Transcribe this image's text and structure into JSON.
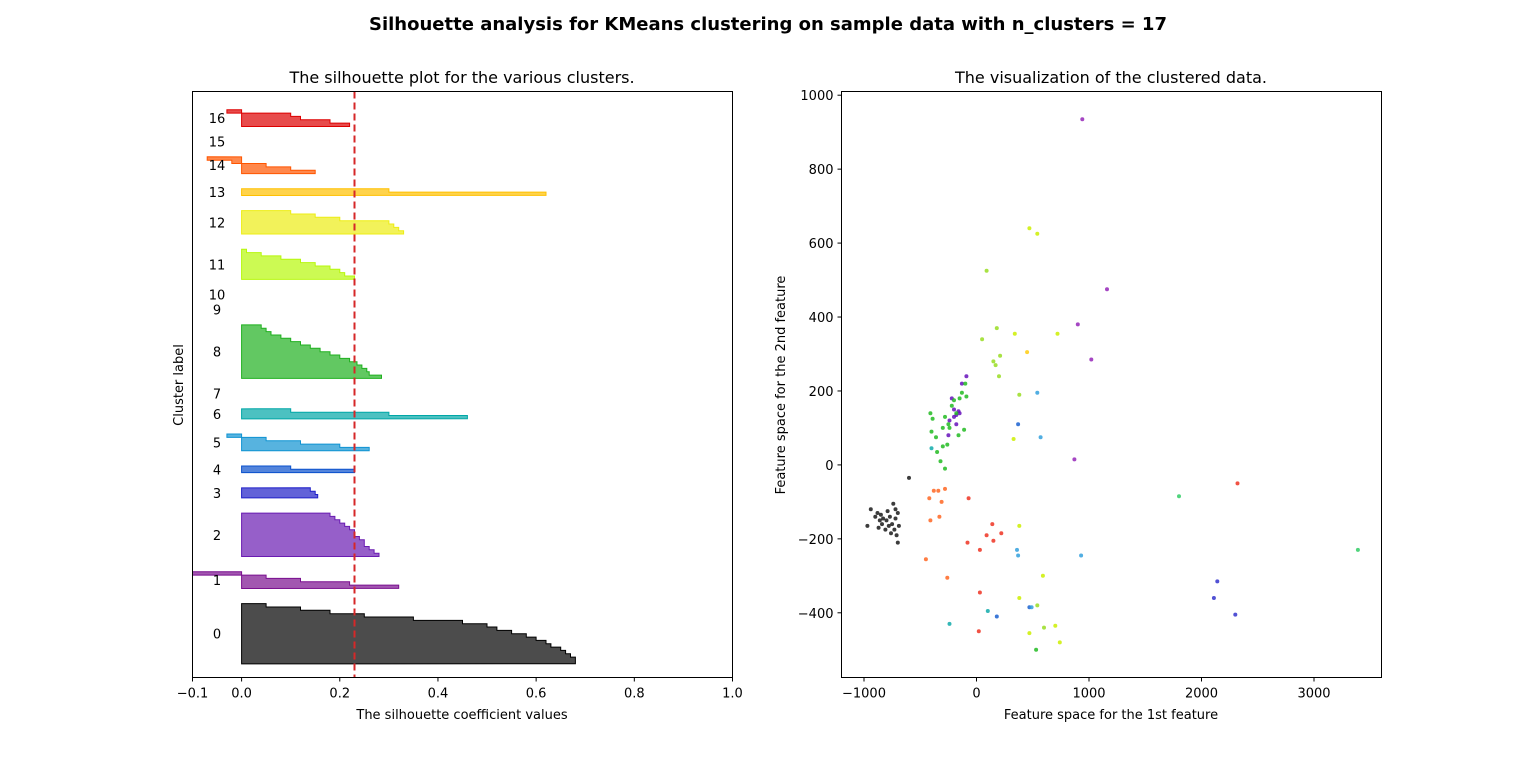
{
  "figure": {
    "suptitle": "Silhouette analysis for KMeans clustering on sample data with n_clusters = 17"
  },
  "chart_data": [
    {
      "type": "area",
      "title": "The silhouette plot for the various clusters.",
      "xlabel": "The silhouette coefficient values",
      "ylabel": "Cluster label",
      "xlim": [
        -0.1,
        1.0
      ],
      "xticks": [
        -0.1,
        0.0,
        0.2,
        0.4,
        0.6,
        0.8,
        1.0
      ],
      "xtick_labels": [
        "−0.1",
        "0.0",
        "0.2",
        "0.4",
        "0.6",
        "0.8",
        "1.0"
      ],
      "yticks": [],
      "average_silhouette": 0.23,
      "average_line_color": "#d62728",
      "clusters": [
        {
          "label": "0",
          "color": "#000000",
          "values": [
            0.68,
            0.68,
            0.67,
            0.66,
            0.65,
            0.63,
            0.62,
            0.6,
            0.58,
            0.55,
            0.52,
            0.5,
            0.45,
            0.35,
            0.25,
            0.18,
            0.12,
            0.05
          ]
        },
        {
          "label": "1",
          "color": "#7a0f8f",
          "values": [
            0.32,
            0.22,
            0.12,
            0.05,
            -0.1
          ]
        },
        {
          "label": "2",
          "color": "#6a1bb2",
          "values": [
            0.28,
            0.27,
            0.26,
            0.25,
            0.25,
            0.24,
            0.23,
            0.23,
            0.22,
            0.21,
            0.2,
            0.19,
            0.18
          ]
        },
        {
          "label": "3",
          "color": "#2020c8",
          "values": [
            0.155,
            0.15,
            0.14
          ]
        },
        {
          "label": "4",
          "color": "#0a50cc",
          "values": [
            0.23,
            0.1
          ]
        },
        {
          "label": "5",
          "color": "#0f93d2",
          "values": [
            0.26,
            0.2,
            0.12,
            0.05,
            -0.03
          ]
        },
        {
          "label": "6",
          "color": "#00a7a7",
          "values": [
            0.46,
            0.3,
            0.1
          ]
        },
        {
          "label": "7",
          "color": "#00aa70",
          "values": []
        },
        {
          "label": "8",
          "color": "#1fb01f",
          "values": [
            0.285,
            0.26,
            0.255,
            0.245,
            0.235,
            0.22,
            0.2,
            0.18,
            0.16,
            0.14,
            0.12,
            0.1,
            0.08,
            0.06,
            0.05,
            0.04
          ]
        },
        {
          "label": "9",
          "color": "#44d000",
          "values": []
        },
        {
          "label": "10",
          "color": "#88e800",
          "values": []
        },
        {
          "label": "11",
          "color": "#b6f80a",
          "values": [
            0.23,
            0.21,
            0.2,
            0.18,
            0.15,
            0.12,
            0.08,
            0.04,
            0.01
          ]
        },
        {
          "label": "12",
          "color": "#eded14",
          "values": [
            0.33,
            0.32,
            0.31,
            0.3,
            0.2,
            0.15,
            0.1
          ]
        },
        {
          "label": "13",
          "color": "#ffc000",
          "values": [
            0.62,
            0.3
          ]
        },
        {
          "label": "14",
          "color": "#ff5500",
          "values": [
            0.15,
            0.1,
            0.05,
            -0.02,
            -0.07
          ]
        },
        {
          "label": "15",
          "color": "#ee2200",
          "values": []
        },
        {
          "label": "16",
          "color": "#dd0000",
          "values": [
            0.22,
            0.18,
            0.12,
            0.1,
            -0.03
          ]
        }
      ]
    },
    {
      "type": "scatter",
      "title": "The visualization of the clustered data.",
      "xlabel": "Feature space for the 1st feature",
      "ylabel": "Feature space for the 2nd feature",
      "xlim": [
        -1200,
        3600
      ],
      "ylim": [
        -575,
        1010
      ],
      "xticks": [
        -1000,
        0,
        1000,
        2000,
        3000
      ],
      "xtick_labels": [
        "−1000",
        "0",
        "1000",
        "2000",
        "3000"
      ],
      "yticks": [
        -400,
        -200,
        0,
        200,
        400,
        600,
        800,
        1000
      ],
      "ytick_labels": [
        "−400",
        "−200",
        "0",
        "200",
        "400",
        "600",
        "800",
        "1000"
      ],
      "points": [
        [
          -970,
          -165,
          0
        ],
        [
          -940,
          -120,
          0
        ],
        [
          -900,
          -140,
          0
        ],
        [
          -880,
          -130,
          0
        ],
        [
          -870,
          -170,
          0
        ],
        [
          -860,
          -150,
          0
        ],
        [
          -850,
          -135,
          0
        ],
        [
          -840,
          -160,
          0
        ],
        [
          -830,
          -145,
          0
        ],
        [
          -810,
          -175,
          0
        ],
        [
          -800,
          -150,
          0
        ],
        [
          -790,
          -125,
          0
        ],
        [
          -780,
          -165,
          0
        ],
        [
          -770,
          -140,
          0
        ],
        [
          -760,
          -185,
          0
        ],
        [
          -750,
          -160,
          0
        ],
        [
          -740,
          -105,
          0
        ],
        [
          -730,
          -175,
          0
        ],
        [
          -720,
          -145,
          0
        ],
        [
          -710,
          -190,
          0
        ],
        [
          -700,
          -210,
          0
        ],
        [
          -690,
          -165,
          0
        ],
        [
          -700,
          -130,
          0
        ],
        [
          -720,
          -120,
          0
        ],
        [
          -600,
          -35,
          0
        ],
        [
          940,
          935,
          1
        ],
        [
          1160,
          475,
          1
        ],
        [
          1020,
          285,
          1
        ],
        [
          900,
          380,
          1
        ],
        [
          870,
          15,
          1
        ],
        [
          -200,
          150,
          2
        ],
        [
          -220,
          180,
          2
        ],
        [
          -180,
          135,
          2
        ],
        [
          -160,
          145,
          2
        ],
        [
          -150,
          140,
          2
        ],
        [
          -130,
          220,
          2
        ],
        [
          -90,
          240,
          2
        ],
        [
          -250,
          80,
          2
        ],
        [
          -240,
          120,
          2
        ],
        [
          -200,
          130,
          2
        ],
        [
          -180,
          110,
          2
        ],
        [
          2140,
          -315,
          3
        ],
        [
          2110,
          -360,
          3
        ],
        [
          2300,
          -405,
          3
        ],
        [
          470,
          -385,
          4
        ],
        [
          180,
          -410,
          4
        ],
        [
          370,
          110,
          4
        ],
        [
          360,
          -230,
          5
        ],
        [
          370,
          -245,
          5
        ],
        [
          490,
          -385,
          5
        ],
        [
          540,
          195,
          5
        ],
        [
          930,
          -245,
          5
        ],
        [
          570,
          75,
          5
        ],
        [
          -240,
          -430,
          6
        ],
        [
          100,
          -395,
          6
        ],
        [
          -400,
          45,
          6
        ],
        [
          1800,
          -85,
          7
        ],
        [
          3390,
          -230,
          7
        ],
        [
          -320,
          10,
          8
        ],
        [
          -350,
          35,
          8
        ],
        [
          -400,
          90,
          8
        ],
        [
          -390,
          125,
          8
        ],
        [
          -360,
          75,
          8
        ],
        [
          -300,
          100,
          8
        ],
        [
          -280,
          130,
          8
        ],
        [
          -250,
          110,
          8
        ],
        [
          -220,
          160,
          8
        ],
        [
          -200,
          175,
          8
        ],
        [
          -180,
          140,
          8
        ],
        [
          -150,
          180,
          8
        ],
        [
          -130,
          195,
          8
        ],
        [
          -100,
          220,
          8
        ],
        [
          -90,
          185,
          8
        ],
        [
          -110,
          95,
          8
        ],
        [
          -160,
          80,
          8
        ],
        [
          -300,
          50,
          8
        ],
        [
          -280,
          -10,
          8
        ],
        [
          -410,
          140,
          8
        ],
        [
          -240,
          100,
          8
        ],
        [
          -260,
          55,
          8
        ],
        [
          530,
          -500,
          8
        ],
        [
          90,
          525,
          9
        ],
        [
          180,
          370,
          9
        ],
        [
          150,
          280,
          9
        ],
        [
          170,
          270,
          9
        ],
        [
          210,
          295,
          9
        ],
        [
          200,
          240,
          9
        ],
        [
          50,
          340,
          9
        ],
        [
          380,
          190,
          9
        ],
        [
          540,
          -380,
          9
        ],
        [
          600,
          -440,
          9
        ],
        [
          470,
          640,
          10
        ],
        [
          540,
          625,
          10
        ],
        [
          340,
          355,
          10
        ],
        [
          720,
          355,
          10
        ],
        [
          330,
          70,
          10
        ],
        [
          590,
          -300,
          10
        ],
        [
          470,
          -455,
          10
        ],
        [
          700,
          -435,
          10
        ],
        [
          740,
          -480,
          10
        ],
        [
          380,
          -360,
          10
        ],
        [
          380,
          -165,
          10
        ],
        [
          450,
          305,
          11
        ],
        [
          -410,
          -150,
          12
        ],
        [
          -420,
          -90,
          12
        ],
        [
          -450,
          -255,
          12
        ],
        [
          -380,
          -70,
          12
        ],
        [
          -330,
          -140,
          12
        ],
        [
          -310,
          -100,
          12
        ],
        [
          -260,
          -305,
          12
        ],
        [
          -280,
          -65,
          12
        ],
        [
          -340,
          -70,
          12
        ],
        [
          -70,
          -90,
          13
        ],
        [
          140,
          -160,
          13
        ],
        [
          150,
          -205,
          13
        ],
        [
          90,
          -190,
          13
        ],
        [
          30,
          -230,
          13
        ],
        [
          -80,
          -210,
          13
        ],
        [
          30,
          -345,
          13
        ],
        [
          20,
          -450,
          13
        ],
        [
          2320,
          -50,
          13
        ],
        [
          220,
          -185,
          13
        ]
      ],
      "point_colors": [
        "#1a1a1a",
        "#9526b8",
        "#6611bb",
        "#3333cc",
        "#1a60d0",
        "#33a0dd",
        "#11aaaa",
        "#33cc66",
        "#22bb22",
        "#99dd22",
        "#ccee00",
        "#ffcc11",
        "#ff6622",
        "#ee3322"
      ]
    }
  ]
}
